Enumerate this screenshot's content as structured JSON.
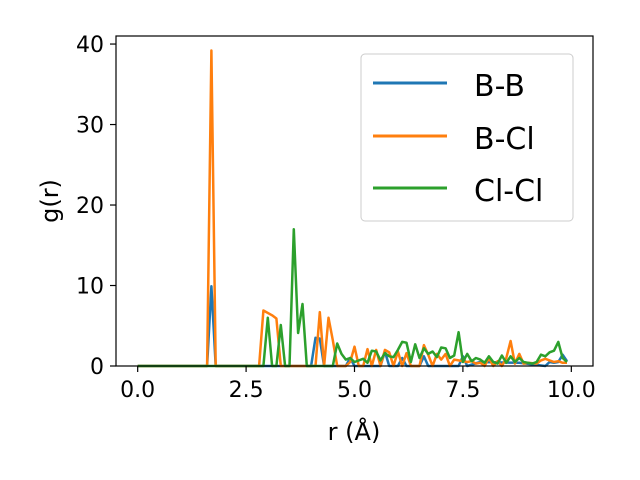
{
  "chart_data": {
    "type": "line",
    "xlabel": "r (Å)",
    "ylabel": "g(r)",
    "xlim": [
      -0.5,
      10.5
    ],
    "ylim": [
      0,
      41
    ],
    "xticks": [
      0.0,
      2.5,
      5.0,
      7.5,
      10.0
    ],
    "xtick_labels": [
      "0.0",
      "2.5",
      "5.0",
      "7.5",
      "10.0"
    ],
    "yticks": [
      0,
      10,
      20,
      30,
      40
    ],
    "ytick_labels": [
      "0",
      "10",
      "20",
      "30",
      "40"
    ],
    "grid": false,
    "legend_position": "top-right",
    "series": [
      {
        "name": "B-B",
        "color": "#1f77b4",
        "x": [
          0.0,
          1.6,
          1.7,
          1.8,
          4.0,
          4.1,
          4.2,
          4.3,
          4.8,
          4.9,
          5.0,
          5.6,
          5.7,
          5.8,
          6.0,
          6.1,
          6.2,
          6.5,
          6.6,
          6.7,
          7.4,
          7.5,
          7.6,
          7.9,
          8.8,
          9.4,
          9.5,
          9.6,
          9.7,
          9.8,
          9.9
        ],
        "y": [
          0,
          0,
          9.9,
          0,
          0,
          3.5,
          3.4,
          0,
          0,
          1.0,
          0,
          0,
          1.8,
          0,
          0,
          1.0,
          0,
          0,
          1.2,
          0,
          0,
          1.2,
          0,
          0.5,
          0.4,
          0,
          0.5,
          0.4,
          0.5,
          1.4,
          0.6
        ]
      },
      {
        "name": "B-Cl",
        "color": "#ff7f0e",
        "x": [
          0.0,
          1.6,
          1.7,
          1.8,
          2.8,
          2.9,
          3.1,
          3.2,
          3.3,
          4.1,
          4.2,
          4.3,
          4.4,
          4.5,
          4.6,
          4.8,
          4.9,
          5.0,
          5.1,
          5.2,
          5.3,
          5.4,
          5.5,
          5.6,
          5.7,
          5.8,
          5.9,
          6.0,
          6.1,
          6.2,
          6.3,
          6.5,
          6.6,
          6.7,
          6.8,
          6.9,
          7.0,
          7.1,
          7.2,
          7.3,
          7.4,
          7.5,
          7.6,
          7.7,
          7.8,
          7.9,
          8.0,
          8.1,
          8.2,
          8.3,
          8.4,
          8.5,
          8.6,
          8.7,
          8.8,
          8.9,
          9.0,
          9.2,
          9.3,
          9.4,
          9.5,
          9.6,
          9.7,
          9.8,
          9.9
        ],
        "y": [
          0,
          0,
          39.2,
          0,
          0,
          6.9,
          6.3,
          5.9,
          0,
          0,
          6.7,
          0,
          6.0,
          3.2,
          0,
          0,
          0.5,
          2.4,
          0,
          0,
          2.1,
          0,
          2.0,
          0,
          2.0,
          1.7,
          0,
          1.8,
          0,
          1.6,
          0,
          0,
          2.6,
          1.4,
          0,
          1.5,
          0.8,
          1.5,
          0,
          0.8,
          0.7,
          0.6,
          0.5,
          0.6,
          0.3,
          0.4,
          0,
          1.0,
          0,
          0.6,
          0,
          1.0,
          3.1,
          0.3,
          1.5,
          0.3,
          0.4,
          0.3,
          0.7,
          0.9,
          0.7,
          0.5,
          0.6,
          0.4,
          0.4
        ]
      },
      {
        "name": "Cl-Cl",
        "color": "#2ca02c",
        "x": [
          0.0,
          2.9,
          3.0,
          3.1,
          3.2,
          3.3,
          3.4,
          3.5,
          3.6,
          3.7,
          3.8,
          3.9,
          4.0,
          4.4,
          4.5,
          4.6,
          4.7,
          4.8,
          4.9,
          5.0,
          5.2,
          5.3,
          5.4,
          5.5,
          5.6,
          5.7,
          5.8,
          5.9,
          6.0,
          6.1,
          6.2,
          6.3,
          6.4,
          6.5,
          6.6,
          6.7,
          6.8,
          6.9,
          7.0,
          7.1,
          7.2,
          7.3,
          7.4,
          7.5,
          7.6,
          7.7,
          7.8,
          7.9,
          8.0,
          8.1,
          8.2,
          8.3,
          8.4,
          8.5,
          8.6,
          8.7,
          8.8,
          8.9,
          9.0,
          9.1,
          9.2,
          9.3,
          9.4,
          9.5,
          9.6,
          9.7,
          9.8,
          9.9
        ],
        "y": [
          0,
          0,
          6.0,
          0,
          0,
          5.1,
          0,
          0,
          17.0,
          4.1,
          7.7,
          0,
          0,
          0,
          0,
          2.8,
          1.5,
          0.8,
          1.0,
          0.5,
          0.9,
          0.4,
          1.9,
          1.8,
          0.7,
          1.6,
          1.2,
          1.1,
          2.0,
          3.0,
          2.9,
          0.5,
          2.7,
          1.0,
          2.2,
          1.5,
          1.8,
          1.1,
          2.3,
          2.2,
          1.0,
          1.3,
          4.2,
          0.5,
          1.5,
          0.6,
          1.0,
          0.8,
          0.4,
          1.2,
          0.5,
          0.3,
          1.3,
          0.4,
          1.2,
          0.5,
          1.0,
          0.5,
          0.4,
          0.3,
          0.5,
          1.4,
          1.2,
          1.7,
          1.9,
          3.0,
          1.0,
          0.5
        ]
      }
    ]
  }
}
